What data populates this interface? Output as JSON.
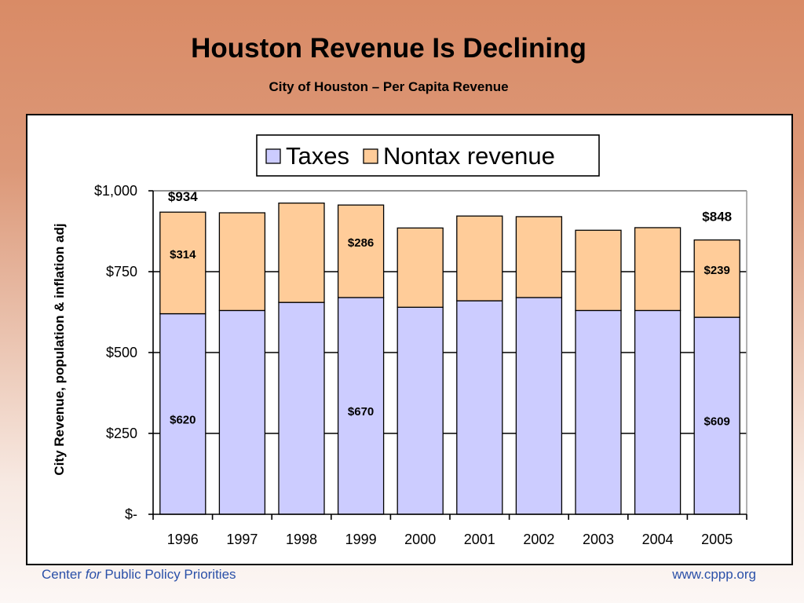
{
  "slide": {
    "title": "Houston Revenue Is Declining",
    "subtitle": "City of Houston – Per Capita Revenue",
    "footer_left": {
      "pre": "Center ",
      "italic": "for",
      "post": " Public Policy Priorities"
    },
    "footer_right": "www.cppp.org"
  },
  "chart_data": {
    "type": "bar",
    "stacked": true,
    "title": "",
    "xlabel": "",
    "ylabel": "City Revenue, population & inflation adj",
    "categories": [
      "1996",
      "1997",
      "1998",
      "1999",
      "2000",
      "2001",
      "2002",
      "2003",
      "2004",
      "2005"
    ],
    "series": [
      {
        "name": "Taxes",
        "color": "#ccccff",
        "values": [
          620,
          630,
          655,
          670,
          640,
          660,
          670,
          630,
          630,
          609
        ]
      },
      {
        "name": "Nontax revenue",
        "color": "#ffcc99",
        "values": [
          314,
          302,
          307,
          286,
          245,
          262,
          250,
          248,
          256,
          239
        ]
      }
    ],
    "ylim": [
      0,
      1000
    ],
    "yticks": [
      0,
      250,
      500,
      750,
      1000
    ],
    "ytick_labels": [
      "$-",
      "$250",
      "$500",
      "$750",
      "$1,000"
    ],
    "grid": true,
    "legend_position": "top-center",
    "data_labels": [
      {
        "category": "1996",
        "series": "Taxes",
        "text": "$620"
      },
      {
        "category": "1996",
        "series": "Nontax revenue",
        "text": "$314"
      },
      {
        "category": "1996",
        "series": "total",
        "text": "$934"
      },
      {
        "category": "1999",
        "series": "Taxes",
        "text": "$670"
      },
      {
        "category": "1999",
        "series": "Nontax revenue",
        "text": "$286"
      },
      {
        "category": "2005",
        "series": "Taxes",
        "text": "$609"
      },
      {
        "category": "2005",
        "series": "Nontax revenue",
        "text": "$239"
      },
      {
        "category": "2005",
        "series": "total",
        "text": "$848"
      }
    ]
  }
}
